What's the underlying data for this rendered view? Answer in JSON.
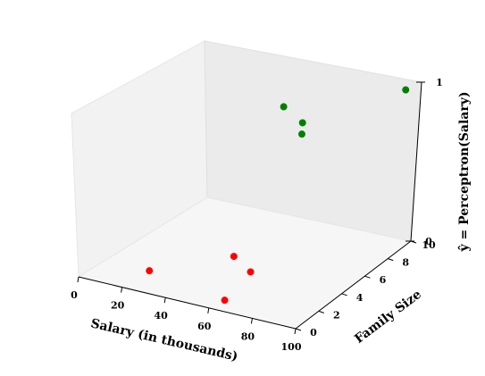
{
  "chart_data": {
    "type": "scatter-3d",
    "xlabel": "Salary (in thousands)",
    "ylabel": "Family Size",
    "zlabel": "ŷ = Perceptron(Salary)",
    "xlim": [
      0,
      100
    ],
    "ylim": [
      0,
      10
    ],
    "zlim": [
      0,
      1
    ],
    "x_ticks": [
      "0",
      "20",
      "40",
      "60",
      "80",
      "100"
    ],
    "y_ticks": [
      "0",
      "2",
      "4",
      "6",
      "8",
      "10"
    ],
    "z_ticks": [
      "0",
      "1"
    ],
    "grid": false,
    "colors": {
      "class0": "#ff0000",
      "class1": "#008000"
    },
    "series": [
      {
        "values": [
          {
            "x": 22,
            "y": 2,
            "z": 0
          },
          {
            "x": 45,
            "y": 5,
            "z": 0
          },
          {
            "x": 58,
            "y": 4,
            "z": 0
          },
          {
            "x": 62,
            "y": 1,
            "z": 0
          }
        ]
      },
      {
        "values": [
          {
            "x": 63,
            "y": 5,
            "z": 1
          },
          {
            "x": 77,
            "y": 4,
            "z": 1
          },
          {
            "x": 82,
            "y": 3,
            "z": 1
          },
          {
            "x": 98,
            "y": 9,
            "z": 1
          }
        ]
      }
    ]
  }
}
